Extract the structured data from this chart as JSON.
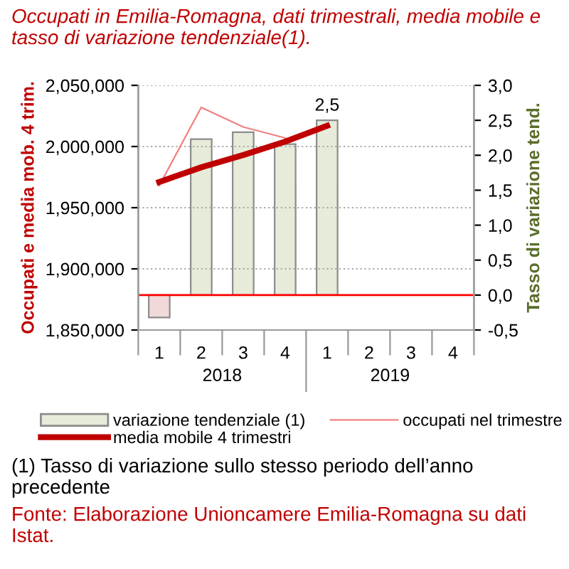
{
  "chart_data": {
    "type": "bar",
    "title": "Occupati in Emilia-Romagna, dati trimestrali, media mobile e tasso di variazione tendenziale(1).",
    "ylabel": "Occupati e media mob. 4 trim.",
    "y2label": "Tasso di variazione tend.",
    "categories": [
      "1",
      "2",
      "3",
      "4",
      "1",
      "2",
      "3",
      "4"
    ],
    "series": [
      {
        "name": "variazione tendenziale (1)",
        "axis": "y2",
        "color": "#e6ecd9",
        "colors": [
          "#f2d9d9",
          "#e6ecd9",
          "#e6ecd9",
          "#e6ecd9",
          "#e6ecd9",
          "#e6ecd9",
          "#e6ecd9",
          "#e6ecd9"
        ],
        "values": [
          -0.32,
          2.23,
          2.33,
          2.16,
          2.5,
          null,
          null,
          null
        ],
        "value_labels": [
          null,
          null,
          null,
          null,
          "2,5",
          null,
          null,
          null
        ]
      },
      {
        "name": "occupati nel trimestre",
        "type": "line",
        "color": "#f08080",
        "values": [
          1968000,
          2032000,
          2016000,
          2007000,
          null,
          null,
          null,
          null
        ]
      },
      {
        "name": "media mobile 4 trimestri",
        "type": "line",
        "color": "#c00000",
        "values": [
          1971000,
          1983000,
          1993000,
          2004000,
          2017000,
          null,
          null,
          null
        ]
      }
    ],
    "ylim": [
      1850000,
      2050000
    ],
    "yticks": [
      {
        "value": 1850000,
        "label": "1,850,000"
      },
      {
        "value": 1900000,
        "label": "1,900,000"
      },
      {
        "value": 1950000,
        "label": "1,950,000"
      },
      {
        "value": 2000000,
        "label": "2,000,000"
      },
      {
        "value": 2050000,
        "label": "2,050,000"
      }
    ],
    "y2lim": [
      -0.5,
      3.0
    ],
    "y2ticks": [
      {
        "value": -0.5,
        "label": "-0,5"
      },
      {
        "value": 0,
        "label": "0,0"
      },
      {
        "value": 0.5,
        "label": "0,5"
      },
      {
        "value": 1,
        "label": "1,0"
      },
      {
        "value": 1.5,
        "label": "1,5"
      },
      {
        "value": 2,
        "label": "2,0"
      },
      {
        "value": 2.5,
        "label": "2,5"
      },
      {
        "value": 3,
        "label": "3,0"
      }
    ],
    "ref_lines": [
      {
        "axis": "y2",
        "value": 0,
        "color": "#ff0000"
      }
    ],
    "grid": "y",
    "legend": "bottom",
    "annotations": [
      "2018",
      "2019",
      "(1) Tasso di variazione sullo stesso periodo dell’anno precedente",
      "Fonte: Elaborazione Unioncamere Emilia-Romagna su dati Istat."
    ]
  }
}
